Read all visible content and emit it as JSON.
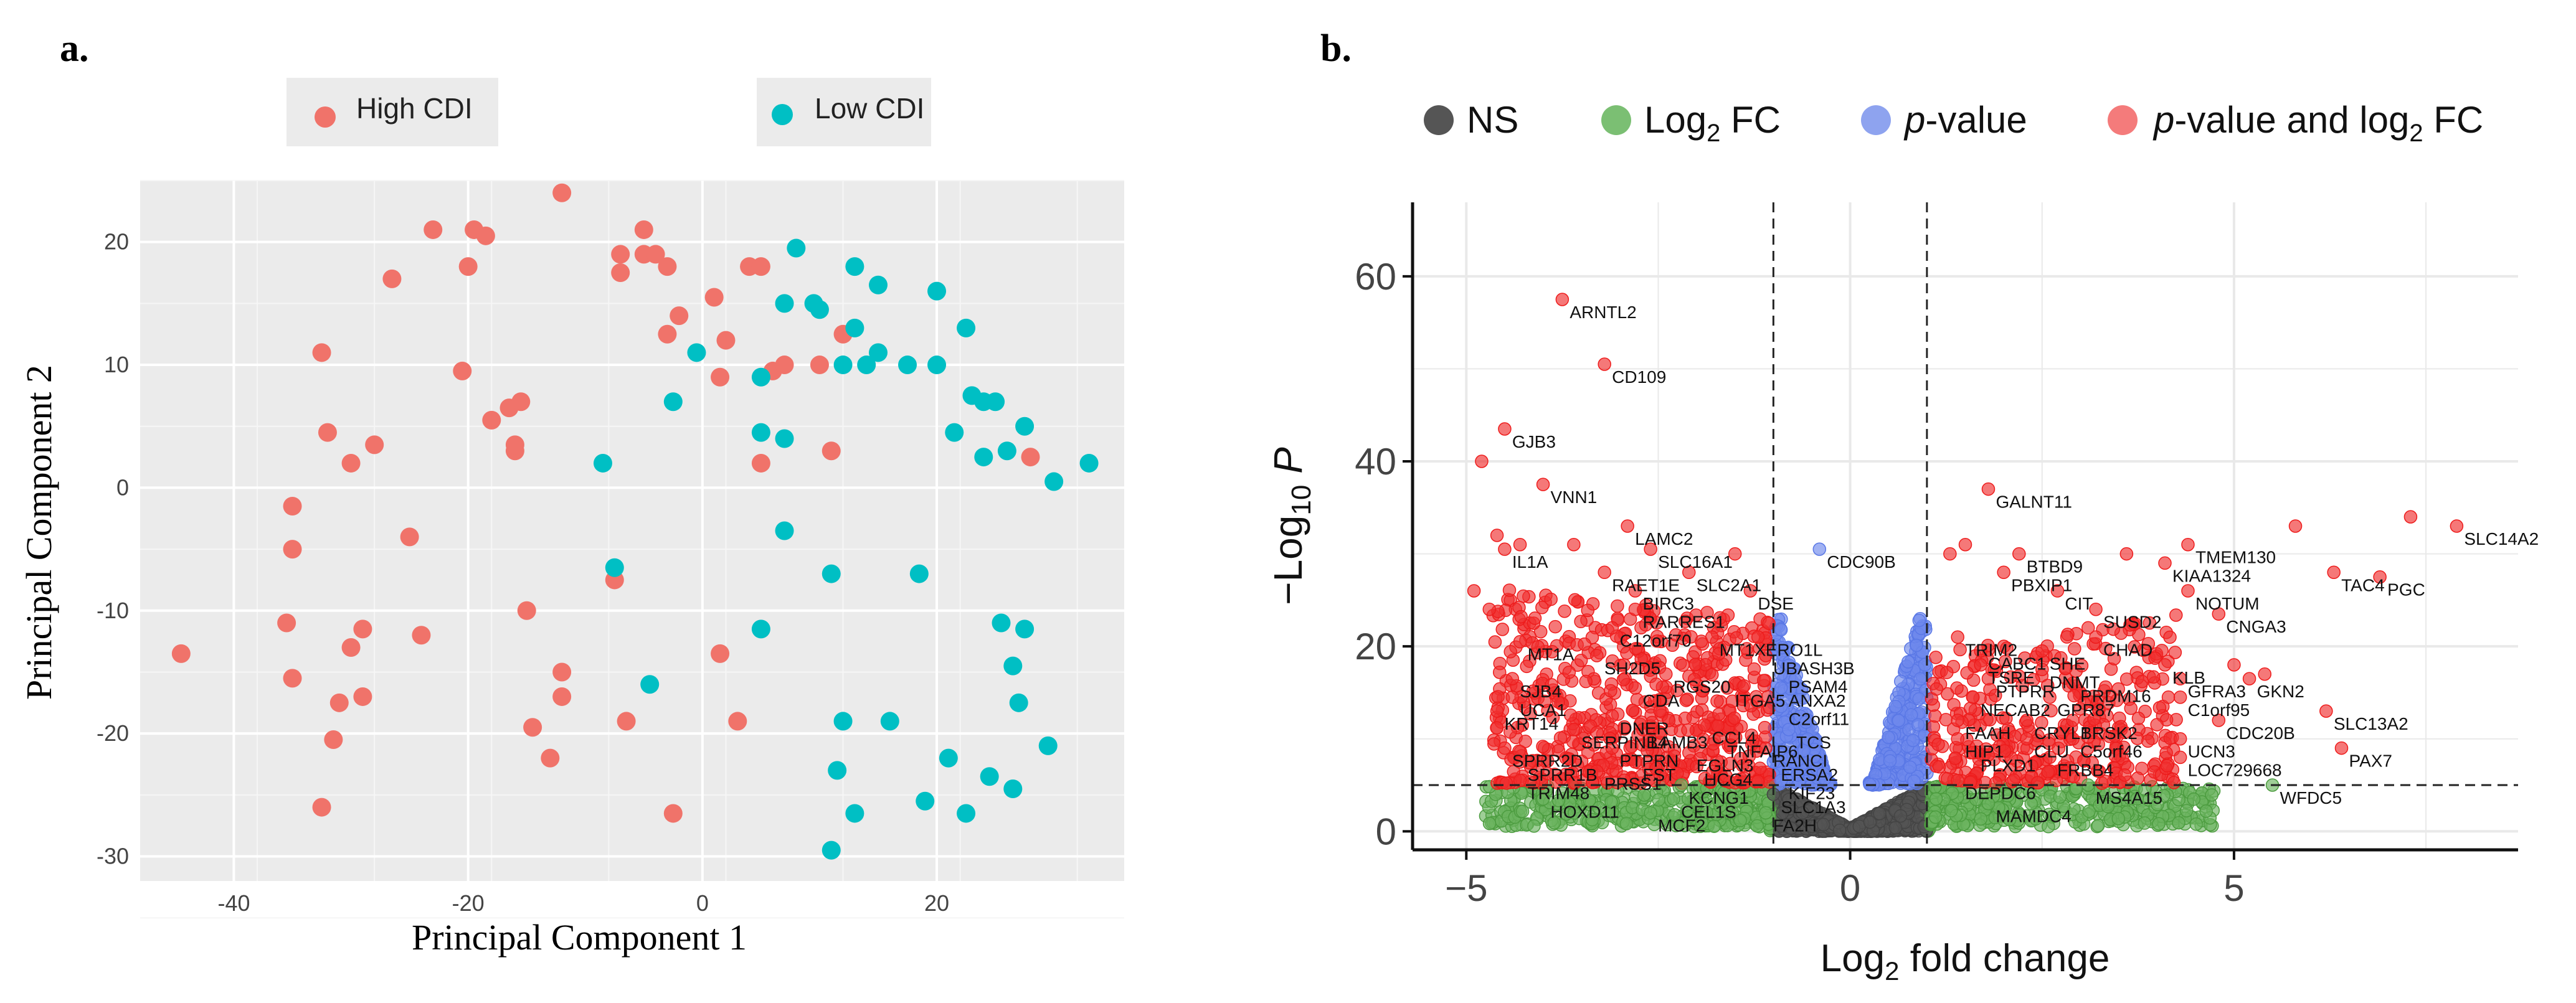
{
  "chart_data": [
    {
      "panel_label": "a.",
      "type": "scatter",
      "xlabel": "Principal Component 1",
      "ylabel": "Principal Component 2",
      "xlim": [
        -48,
        36
      ],
      "ylim": [
        -32,
        25
      ],
      "xticks": [
        -40,
        -20,
        0,
        20
      ],
      "yticks": [
        -30,
        -20,
        -10,
        0,
        10,
        20
      ],
      "grid": true,
      "legend_position": "top",
      "series": [
        {
          "name": "High CDI",
          "color": "#f0736a",
          "points": [
            [
              -44.5,
              -13.5
            ],
            [
              -35.5,
              -11
            ],
            [
              -35,
              -15.5
            ],
            [
              -35,
              -5
            ],
            [
              -35,
              -1.5
            ],
            [
              -32.5,
              -26
            ],
            [
              -32.5,
              11
            ],
            [
              -32,
              4.5
            ],
            [
              -31.5,
              -20.5
            ],
            [
              -31,
              -17.5
            ],
            [
              -30,
              -13
            ],
            [
              -30,
              2
            ],
            [
              -29,
              -11.5
            ],
            [
              -29,
              -17
            ],
            [
              -28,
              3.5
            ],
            [
              -26.5,
              17
            ],
            [
              -25,
              -4
            ],
            [
              -24,
              -12
            ],
            [
              -23,
              21
            ],
            [
              -20.5,
              9.5
            ],
            [
              -20,
              18
            ],
            [
              -19.5,
              21
            ],
            [
              -18.5,
              20.5
            ],
            [
              -18,
              5.5
            ],
            [
              -16.5,
              6.5
            ],
            [
              -16,
              3
            ],
            [
              -16,
              3.5
            ],
            [
              -15.5,
              7
            ],
            [
              -15,
              -10
            ],
            [
              -14.5,
              -19.5
            ],
            [
              -13,
              -22
            ],
            [
              -12,
              24
            ],
            [
              -12,
              -15
            ],
            [
              -12,
              -17
            ],
            [
              -7.5,
              -7.5
            ],
            [
              -7,
              19
            ],
            [
              -7,
              17.5
            ],
            [
              -6.5,
              -19
            ],
            [
              -5,
              21
            ],
            [
              -5,
              19
            ],
            [
              -4,
              19
            ],
            [
              -3,
              12.5
            ],
            [
              -3,
              18
            ],
            [
              -2.5,
              -26.5
            ],
            [
              -2,
              14
            ],
            [
              1,
              15.5
            ],
            [
              1.5,
              -13.5
            ],
            [
              1.5,
              9
            ],
            [
              2,
              12
            ],
            [
              3,
              -19
            ],
            [
              4,
              18
            ],
            [
              5,
              18
            ],
            [
              5,
              2
            ],
            [
              6,
              9.5
            ],
            [
              7,
              10
            ],
            [
              10,
              10
            ],
            [
              11,
              3
            ],
            [
              12,
              12.5
            ],
            [
              28,
              2.5
            ]
          ]
        },
        {
          "name": "Low CDI",
          "color": "#00bfc4",
          "points": [
            [
              -8.5,
              2
            ],
            [
              -7.5,
              -6.5
            ],
            [
              -4.5,
              -16
            ],
            [
              -2.5,
              7
            ],
            [
              -0.5,
              11
            ],
            [
              5,
              9
            ],
            [
              5,
              4.5
            ],
            [
              5,
              -11.5
            ],
            [
              7,
              15
            ],
            [
              7,
              4
            ],
            [
              7,
              -3.5
            ],
            [
              8,
              19.5
            ],
            [
              9.5,
              15
            ],
            [
              10,
              14.5
            ],
            [
              11,
              -7
            ],
            [
              11,
              -29.5
            ],
            [
              11.5,
              -23
            ],
            [
              12,
              10
            ],
            [
              12,
              -19
            ],
            [
              13,
              13
            ],
            [
              13,
              18
            ],
            [
              13,
              -26.5
            ],
            [
              14,
              10
            ],
            [
              15,
              16.5
            ],
            [
              15,
              11
            ],
            [
              16,
              -19
            ],
            [
              17.5,
              10
            ],
            [
              18.5,
              -7
            ],
            [
              19,
              -25.5
            ],
            [
              20,
              16
            ],
            [
              20,
              10
            ],
            [
              21,
              -22
            ],
            [
              21.5,
              4.5
            ],
            [
              22.5,
              13
            ],
            [
              22.5,
              -26.5
            ],
            [
              23,
              7.5
            ],
            [
              24,
              2.5
            ],
            [
              24,
              7
            ],
            [
              24.5,
              -23.5
            ],
            [
              25,
              7
            ],
            [
              25.5,
              -11
            ],
            [
              26,
              3
            ],
            [
              26.5,
              -24.5
            ],
            [
              26.5,
              -14.5
            ],
            [
              27,
              -17.5
            ],
            [
              27.5,
              5
            ],
            [
              27.5,
              -11.5
            ],
            [
              29.5,
              -21
            ],
            [
              30,
              0.5
            ],
            [
              33,
              2
            ]
          ]
        }
      ]
    },
    {
      "panel_label": "b.",
      "type": "scatter",
      "xlabel": "Log2 fold change",
      "ylabel": "−Log10 P",
      "xlim": [
        -5.7,
        8.7
      ],
      "ylim": [
        -2,
        68
      ],
      "xticks": [
        -5,
        0,
        5
      ],
      "yticks": [
        0,
        20,
        40,
        60
      ],
      "grid": true,
      "legend_position": "top",
      "thresholds": {
        "log2fc": [
          -1,
          1
        ],
        "neg_log10_p": 5
      },
      "legend": [
        {
          "key": "ns",
          "label": "NS",
          "color": "#333333"
        },
        {
          "key": "fc",
          "label": "Log2 FC",
          "color": "#3aa832"
        },
        {
          "key": "p",
          "label": "p-value",
          "color": "#5a78e6"
        },
        {
          "key": "both",
          "label": "p-value and log2 FC",
          "color": "#f20f0f"
        }
      ],
      "labeled_genes": [
        {
          "gene": "ARNTL2",
          "x": -3.75,
          "y": 57.5
        },
        {
          "gene": "CD109",
          "x": -3.2,
          "y": 50.5
        },
        {
          "gene": "GJB3",
          "x": -4.5,
          "y": 43.5
        },
        {
          "gene": "VNN1",
          "x": -4,
          "y": 37.5
        },
        {
          "gene": "LAMC2",
          "x": -2.9,
          "y": 33
        },
        {
          "gene": "SLC16A1",
          "x": -2.6,
          "y": 30.5
        },
        {
          "gene": "IL1A",
          "x": -4.5,
          "y": 30.5
        },
        {
          "gene": "RAET1E",
          "x": -3.2,
          "y": 28
        },
        {
          "gene": "SLC2A1",
          "x": -2.1,
          "y": 28
        },
        {
          "gene": "CDC90B",
          "x": -0.4,
          "y": 30.5
        },
        {
          "gene": "BIRC3",
          "x": -2.8,
          "y": 26
        },
        {
          "gene": "DSE",
          "x": -1.3,
          "y": 26
        },
        {
          "gene": "RARRES1",
          "x": -2.8,
          "y": 24
        },
        {
          "gene": "C12orf70",
          "x": -3.1,
          "y": 22
        },
        {
          "gene": "MT1X",
          "x": -1.8,
          "y": 21
        },
        {
          "gene": "ERO1L",
          "x": -1.2,
          "y": 21
        },
        {
          "gene": "MT1A",
          "x": -4.3,
          "y": 20.5
        },
        {
          "gene": "SH2D5",
          "x": -3.3,
          "y": 19
        },
        {
          "gene": "UBASH3B",
          "x": -1.1,
          "y": 19
        },
        {
          "gene": "RGS20",
          "x": -2.4,
          "y": 17
        },
        {
          "gene": "PSAM4",
          "x": -0.9,
          "y": 17
        },
        {
          "gene": "SJB4",
          "x": -4.4,
          "y": 16.5
        },
        {
          "gene": "CDA",
          "x": -2.8,
          "y": 15.5
        },
        {
          "gene": "ITGA5",
          "x": -1.6,
          "y": 15.5
        },
        {
          "gene": "ANXA2",
          "x": -0.9,
          "y": 15.5
        },
        {
          "gene": "UCA1",
          "x": -4.4,
          "y": 14.5
        },
        {
          "gene": "C2orf11",
          "x": -0.9,
          "y": 13.5
        },
        {
          "gene": "KRT14",
          "x": -4.6,
          "y": 13
        },
        {
          "gene": "DNER",
          "x": -3.1,
          "y": 12.5
        },
        {
          "gene": "SERPINB4",
          "x": -3.6,
          "y": 11
        },
        {
          "gene": "LAMB3",
          "x": -2.7,
          "y": 11
        },
        {
          "gene": "CCL4",
          "x": -1.9,
          "y": 11.5
        },
        {
          "gene": "TCS",
          "x": -0.8,
          "y": 11
        },
        {
          "gene": "SPRR2D",
          "x": -4.5,
          "y": 9
        },
        {
          "gene": "PTPRN",
          "x": -3.1,
          "y": 9
        },
        {
          "gene": "TNFAIP6",
          "x": -1.7,
          "y": 10
        },
        {
          "gene": "RANCI",
          "x": -1.1,
          "y": 9
        },
        {
          "gene": "EGLN3",
          "x": -2.1,
          "y": 8.5
        },
        {
          "gene": "SPRR1B",
          "x": -4.3,
          "y": 7.5
        },
        {
          "gene": "FST",
          "x": -2.8,
          "y": 7.5
        },
        {
          "gene": "ERSA2",
          "x": -1,
          "y": 7.5
        },
        {
          "gene": "HCG4",
          "x": -2,
          "y": 7
        },
        {
          "gene": "PRSS1",
          "x": -3.3,
          "y": 6.5
        },
        {
          "gene": "TRIM48",
          "x": -4.3,
          "y": 5.5
        },
        {
          "gene": "KCNG1",
          "x": -2.2,
          "y": 5
        },
        {
          "gene": "KIF23",
          "x": -0.9,
          "y": 5.5
        },
        {
          "gene": "HOXD11",
          "x": -4,
          "y": 3.5
        },
        {
          "gene": "CEL1S",
          "x": -2.3,
          "y": 3.5
        },
        {
          "gene": "SLC1A3",
          "x": -1,
          "y": 4
        },
        {
          "gene": "MCF2",
          "x": -2.6,
          "y": 2
        },
        {
          "gene": "FA2H",
          "x": -1.1,
          "y": 2
        },
        {
          "gene": "GALNT11",
          "x": 1.8,
          "y": 37
        },
        {
          "gene": "BTBD9",
          "x": 2.2,
          "y": 30
        },
        {
          "gene": "PBXIP1",
          "x": 2,
          "y": 28
        },
        {
          "gene": "CIT",
          "x": 2.7,
          "y": 26
        },
        {
          "gene": "TMEM130",
          "x": 4.4,
          "y": 31
        },
        {
          "gene": "KIAA1324",
          "x": 4.1,
          "y": 29
        },
        {
          "gene": "NOTUM",
          "x": 4.4,
          "y": 26
        },
        {
          "gene": "SUSD2",
          "x": 3.2,
          "y": 24
        },
        {
          "gene": "CNGA3",
          "x": 4.8,
          "y": 23.5
        },
        {
          "gene": "SLC14A2",
          "x": 7.9,
          "y": 33
        },
        {
          "gene": "TAC4",
          "x": 6.3,
          "y": 28
        },
        {
          "gene": "PGC",
          "x": 6.9,
          "y": 27.5
        },
        {
          "gene": "TRIM2",
          "x": 1.4,
          "y": 21
        },
        {
          "gene": "CHAD",
          "x": 3.2,
          "y": 21
        },
        {
          "gene": "CABC1",
          "x": 1.7,
          "y": 19.5
        },
        {
          "gene": "SHE",
          "x": 2.5,
          "y": 19.5
        },
        {
          "gene": "TSRE",
          "x": 1.7,
          "y": 18
        },
        {
          "gene": "DNMT",
          "x": 2.5,
          "y": 17.5
        },
        {
          "gene": "KLB",
          "x": 4.1,
          "y": 18
        },
        {
          "gene": "PTPRR",
          "x": 1.8,
          "y": 16.5
        },
        {
          "gene": "PRDM16",
          "x": 2.9,
          "y": 16
        },
        {
          "gene": "GFRA3",
          "x": 4.3,
          "y": 16.5
        },
        {
          "gene": "GKN2",
          "x": 5.2,
          "y": 16.5
        },
        {
          "gene": "NECAB2",
          "x": 1.6,
          "y": 14.5
        },
        {
          "gene": "GPR87",
          "x": 2.6,
          "y": 14.5
        },
        {
          "gene": "C1orf95",
          "x": 4.3,
          "y": 14.5
        },
        {
          "gene": "SLC13A2",
          "x": 6.2,
          "y": 13
        },
        {
          "gene": "FAAH",
          "x": 1.4,
          "y": 12
        },
        {
          "gene": "CRYL1",
          "x": 2.3,
          "y": 12
        },
        {
          "gene": "BRSK2",
          "x": 2.9,
          "y": 12
        },
        {
          "gene": "CDC20B",
          "x": 4.8,
          "y": 12
        },
        {
          "gene": "HIP1",
          "x": 1.4,
          "y": 10
        },
        {
          "gene": "CLU",
          "x": 2.3,
          "y": 10
        },
        {
          "gene": "C5orf46",
          "x": 2.9,
          "y": 10
        },
        {
          "gene": "UCN3",
          "x": 4.3,
          "y": 10
        },
        {
          "gene": "PAX7",
          "x": 6.4,
          "y": 9
        },
        {
          "gene": "PLXD1",
          "x": 1.6,
          "y": 8.5
        },
        {
          "gene": "FRBB4",
          "x": 2.6,
          "y": 8
        },
        {
          "gene": "LOC729668",
          "x": 4.3,
          "y": 8
        },
        {
          "gene": "WFDC5",
          "x": 5.5,
          "y": 5
        },
        {
          "gene": "DEPDC6",
          "x": 1.4,
          "y": 5.5
        },
        {
          "gene": "MS4A15",
          "x": 3.1,
          "y": 5
        },
        {
          "gene": "MAMDC4",
          "x": 1.8,
          "y": 3
        }
      ]
    }
  ]
}
